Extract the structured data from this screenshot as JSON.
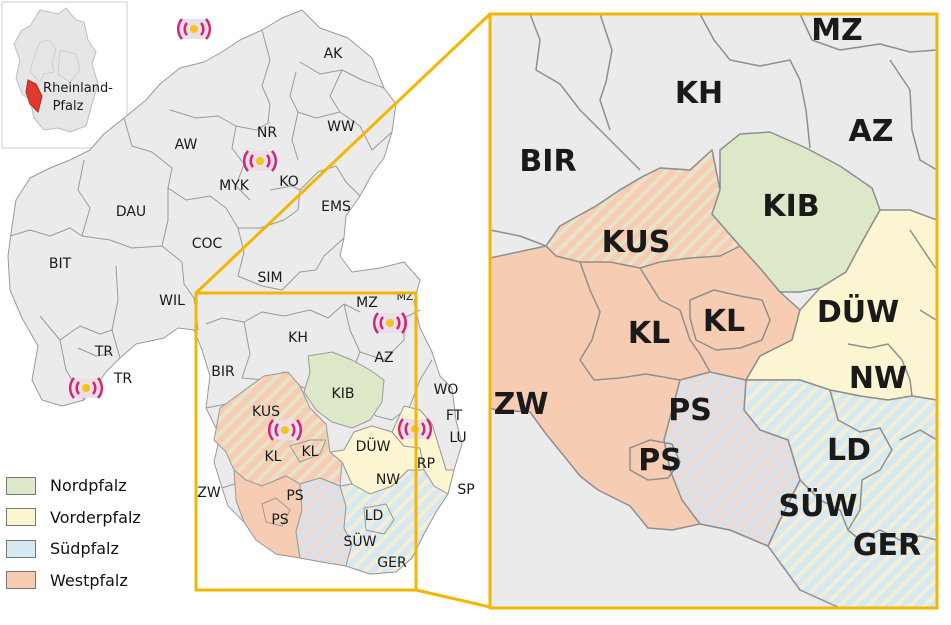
{
  "inset": {
    "label_line1": "Rheinland-",
    "label_line2": "Pfalz"
  },
  "districts": {
    "ak": "AK",
    "nr": "NR",
    "ww": "WW",
    "aw": "AW",
    "myk": "MYK",
    "ko": "KO",
    "dau": "DAU",
    "ems": "EMS",
    "coc": "COC",
    "bit": "BIT",
    "sim": "SIM",
    "wil": "WIL",
    "tr1": "TR",
    "tr2": "TR",
    "mz": "MZ",
    "mz2": "MZ",
    "kh": "KH",
    "az": "AZ",
    "bir": "BIR",
    "kib": "KIB",
    "wo": "WO",
    "kus": "KUS",
    "ft": "FT",
    "lu": "LU",
    "kl1": "KL",
    "kl2": "KL",
    "duw": "DÜW",
    "rp": "RP",
    "nw": "NW",
    "zw": "ZW",
    "ps1": "PS",
    "ps2": "PS",
    "sp": "SP",
    "ld": "LD",
    "suw": "SÜW",
    "ger": "GER"
  },
  "zoom_labels": {
    "mz": "MZ",
    "kh": "KH",
    "az": "AZ",
    "bir": "BIR",
    "kib": "KIB",
    "kus": "KUS",
    "duw": "DÜW",
    "kl1": "KL",
    "kl2": "KL",
    "nw": "NW",
    "zw": "ZW",
    "ps1": "PS",
    "ps2": "PS",
    "ld": "LD",
    "suw": "SÜW",
    "ger": "GER"
  },
  "legend": [
    {
      "label": "Nordpfalz",
      "color": "#dde8c9"
    },
    {
      "label": "Vorderpfalz",
      "color": "#fcf5d2"
    },
    {
      "label": "Südpfalz",
      "color": "#d6e9f3"
    },
    {
      "label": "Westpfalz",
      "color": "#f6cdb3"
    }
  ],
  "colors": {
    "district_fill": "#ebebeb",
    "border": "#9a9a9a",
    "highlight_frame": "#f2b705",
    "state_red": "#e03a2e",
    "signal_icon": "#d6237a"
  },
  "icons": [
    "radio-signal-icon"
  ]
}
